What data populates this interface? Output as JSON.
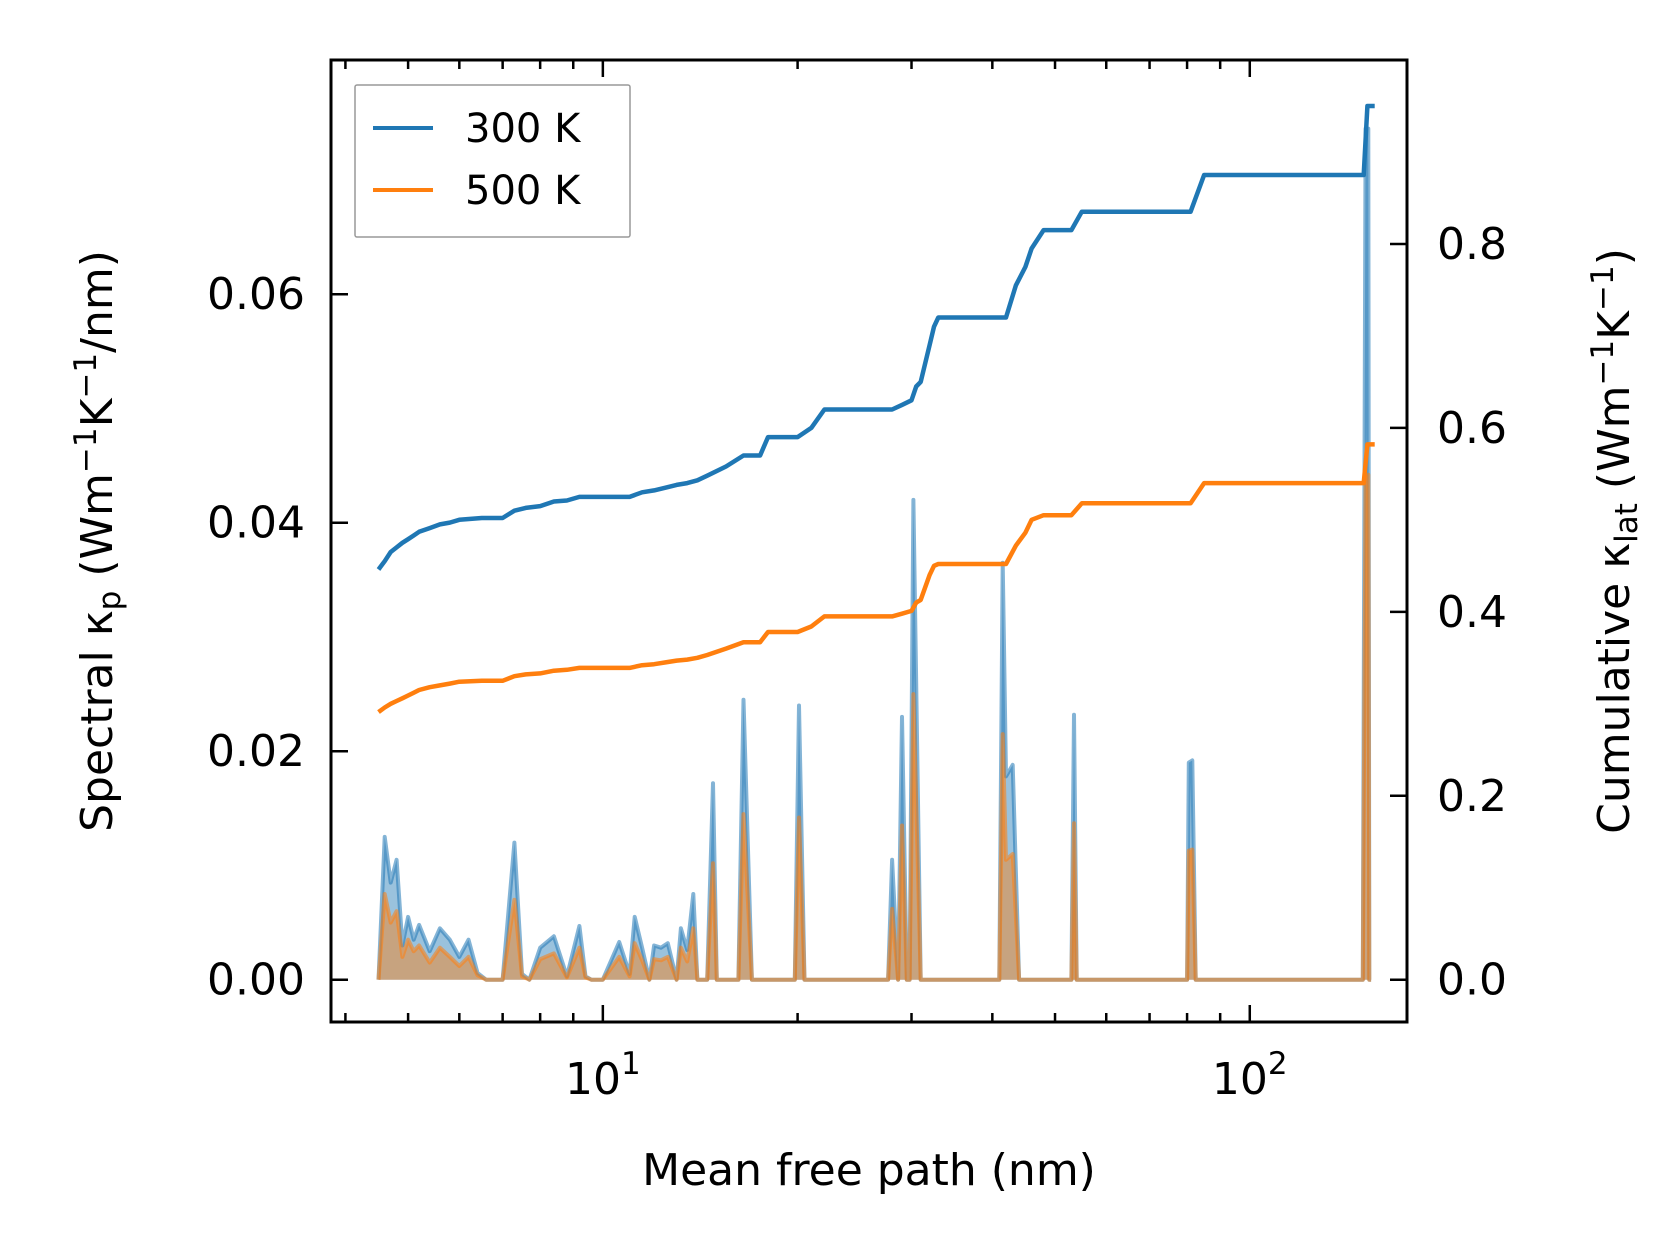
{
  "chart_data": {
    "type": "line",
    "xscale": "log",
    "xlabel": "Mean free path (nm)",
    "ylabel_left": "Spectral κp (Wm−1K−1/nm)",
    "ylabel_right": "Cumulative κlat (Wm−1K−1)",
    "xlim": [
      3.8,
      175
    ],
    "ylim_left": [
      -0.0037,
      0.0805
    ],
    "ylim_right": [
      -0.046,
      1.0
    ],
    "left_ticks": [
      0.0,
      0.02,
      0.04,
      0.06
    ],
    "left_tick_labels": [
      "0.00",
      "0.02",
      "0.04",
      "0.06"
    ],
    "right_ticks": [
      0.0,
      0.2,
      0.4,
      0.6,
      0.8
    ],
    "right_tick_labels": [
      "0.0",
      "0.2",
      "0.4",
      "0.6",
      "0.8"
    ],
    "x_major_ticks": [
      10,
      100
    ],
    "x_tick_labels": [
      {
        "base": "10",
        "exp": "1"
      },
      {
        "base": "10",
        "exp": "2"
      }
    ],
    "legend": {
      "location": "top-left",
      "entries": [
        "300 K",
        "500 K"
      ]
    },
    "series": [
      {
        "name": "300 K",
        "color": "#1f77b4",
        "cumulative": {
          "x": [
            4.5,
            4.6,
            4.7,
            4.8,
            4.9,
            5.0,
            5.1,
            5.2,
            5.4,
            5.6,
            5.8,
            6.0,
            6.5,
            7.0,
            7.3,
            7.6,
            8.0,
            8.4,
            8.8,
            9.2,
            10.0,
            11.0,
            11.5,
            12.0,
            12.5,
            13.0,
            13.5,
            14.0,
            14.5,
            15.5,
            16.5,
            17.5,
            18.0,
            20.0,
            21.0,
            22.0,
            28.0,
            29.0,
            30.0,
            30.5,
            31.0,
            32.0,
            32.5,
            33.0,
            42.0,
            43.5,
            45.0,
            46.0,
            48.0,
            53.0,
            55.0,
            81.0,
            85.0,
            150.0,
            152.0,
            156.0
          ],
          "y": [
            0.446,
            0.455,
            0.465,
            0.47,
            0.475,
            0.479,
            0.483,
            0.487,
            0.491,
            0.495,
            0.497,
            0.5,
            0.502,
            0.502,
            0.51,
            0.513,
            0.515,
            0.52,
            0.521,
            0.525,
            0.525,
            0.525,
            0.53,
            0.532,
            0.535,
            0.538,
            0.54,
            0.543,
            0.548,
            0.558,
            0.57,
            0.57,
            0.59,
            0.59,
            0.6,
            0.62,
            0.62,
            0.625,
            0.63,
            0.645,
            0.65,
            0.69,
            0.71,
            0.72,
            0.72,
            0.755,
            0.775,
            0.795,
            0.815,
            0.815,
            0.835,
            0.835,
            0.875,
            0.875,
            0.95,
            0.95
          ]
        },
        "spectral": {
          "x": [
            4.5,
            4.6,
            4.7,
            4.8,
            4.9,
            5.0,
            5.1,
            5.2,
            5.4,
            5.6,
            5.8,
            6.0,
            6.2,
            6.4,
            6.6,
            6.8,
            7.0,
            7.3,
            7.5,
            7.7,
            8.0,
            8.4,
            8.8,
            9.2,
            9.4,
            9.6,
            10.0,
            10.6,
            11.0,
            11.2,
            11.5,
            11.8,
            12.0,
            12.3,
            12.6,
            13.0,
            13.2,
            13.5,
            13.8,
            14.0,
            14.5,
            14.8,
            15.0,
            15.2,
            16.2,
            16.5,
            17.0,
            17.4,
            19.8,
            20.1,
            20.5,
            20.9,
            27.6,
            28.0,
            28.6,
            29.0,
            29.5,
            29.8,
            30.2,
            31.0,
            31.5,
            32.0,
            41.0,
            41.5,
            42.0,
            43.0,
            44.0,
            45.0,
            46.0,
            53.0,
            53.5,
            54.0,
            54.5,
            80.0,
            80.5,
            81.5,
            82.5,
            83.5,
            149.0,
            149.5,
            151.0,
            152.5,
            153.0,
            154.0
          ],
          "y": [
            0,
            0.0125,
            0.0085,
            0.0105,
            0.003,
            0.0055,
            0.0035,
            0.0048,
            0.0025,
            0.0045,
            0.0035,
            0.002,
            0.0035,
            0.0006,
            0.0,
            0,
            0.0,
            0.012,
            0.0005,
            0.0,
            0.0028,
            0.0038,
            0.0003,
            0.0047,
            0.0003,
            0,
            0.0,
            0.0033,
            0.0005,
            0.0055,
            0.0028,
            0.0,
            0.003,
            0.0028,
            0.0032,
            0.0,
            0.0045,
            0.0026,
            0.0075,
            0.0,
            0.0,
            0.0172,
            0.0,
            0.0,
            0.0,
            0.0245,
            0.0,
            0.0,
            0.0,
            0.024,
            0.0,
            0,
            0.0,
            0.0105,
            0.0,
            0.023,
            0.0,
            0.0,
            0.042,
            0.0,
            0.0,
            0,
            0.0,
            0.0365,
            0.0178,
            0.0188,
            0.0,
            0,
            0.0,
            0.0,
            0.0232,
            0.0,
            0,
            0.0,
            0.019,
            0.0192,
            0.0,
            0,
            0.0,
            0.0,
            0.0745,
            0.0745,
            0.0,
            0
          ]
        }
      },
      {
        "name": "500 K",
        "color": "#ff7f0e",
        "cumulative": {
          "x": [
            4.5,
            4.6,
            4.7,
            4.8,
            4.9,
            5.0,
            5.1,
            5.2,
            5.4,
            5.6,
            5.8,
            6.0,
            6.5,
            7.0,
            7.3,
            7.6,
            8.0,
            8.4,
            8.8,
            9.2,
            10.0,
            11.0,
            11.5,
            12.0,
            12.5,
            13.0,
            13.5,
            14.0,
            14.5,
            15.5,
            16.5,
            17.5,
            18.0,
            20.0,
            21.0,
            22.0,
            28.0,
            29.0,
            30.0,
            30.5,
            31.0,
            32.0,
            32.5,
            33.0,
            42.0,
            43.5,
            45.0,
            46.0,
            48.0,
            53.0,
            55.0,
            81.0,
            85.0,
            150.0,
            152.0,
            156.0
          ],
          "y": [
            0.291,
            0.296,
            0.3,
            0.303,
            0.306,
            0.309,
            0.312,
            0.315,
            0.318,
            0.32,
            0.322,
            0.324,
            0.325,
            0.325,
            0.33,
            0.332,
            0.333,
            0.336,
            0.337,
            0.339,
            0.339,
            0.339,
            0.342,
            0.343,
            0.345,
            0.347,
            0.348,
            0.35,
            0.353,
            0.36,
            0.367,
            0.367,
            0.378,
            0.378,
            0.384,
            0.395,
            0.395,
            0.398,
            0.401,
            0.41,
            0.413,
            0.44,
            0.45,
            0.452,
            0.452,
            0.472,
            0.486,
            0.5,
            0.505,
            0.505,
            0.518,
            0.518,
            0.54,
            0.54,
            0.582,
            0.582
          ]
        },
        "spectral": {
          "x": [
            4.5,
            4.6,
            4.7,
            4.8,
            4.9,
            5.0,
            5.1,
            5.2,
            5.4,
            5.6,
            5.8,
            6.0,
            6.2,
            6.4,
            6.6,
            6.8,
            7.0,
            7.3,
            7.5,
            7.7,
            8.0,
            8.4,
            8.8,
            9.2,
            9.4,
            9.6,
            10.0,
            10.6,
            11.0,
            11.2,
            11.5,
            11.8,
            12.0,
            12.3,
            12.6,
            13.0,
            13.2,
            13.5,
            13.8,
            14.0,
            14.5,
            14.8,
            15.0,
            15.2,
            16.2,
            16.5,
            17.0,
            17.4,
            19.8,
            20.1,
            20.5,
            20.9,
            27.6,
            28.0,
            28.6,
            29.0,
            29.5,
            29.8,
            30.2,
            31.0,
            31.5,
            32.0,
            41.0,
            41.5,
            42.0,
            43.0,
            44.0,
            45.0,
            46.0,
            53.0,
            53.5,
            54.0,
            54.5,
            80.0,
            80.5,
            81.5,
            82.5,
            83.5,
            149.0,
            149.5,
            151.0,
            152.5,
            153.0,
            154.0
          ],
          "y": [
            0,
            0.0075,
            0.005,
            0.006,
            0.002,
            0.0035,
            0.0025,
            0.003,
            0.0015,
            0.0028,
            0.002,
            0.0012,
            0.002,
            0.0004,
            0.0,
            0,
            0.0,
            0.007,
            0.0003,
            0.0,
            0.0018,
            0.0023,
            0.0002,
            0.0028,
            0.0002,
            0,
            0.0,
            0.002,
            0.0003,
            0.0032,
            0.0017,
            0.0,
            0.0018,
            0.0017,
            0.002,
            0.0,
            0.0028,
            0.0016,
            0.0045,
            0.0,
            0.0,
            0.0102,
            0.0,
            0.0,
            0.0,
            0.0145,
            0.0,
            0.0,
            0.0,
            0.0142,
            0.0,
            0,
            0.0,
            0.0062,
            0.0,
            0.0135,
            0.0,
            0.0,
            0.025,
            0.0,
            0.0,
            0,
            0.0,
            0.0215,
            0.0105,
            0.011,
            0.0,
            0,
            0.0,
            0.0,
            0.0137,
            0.0,
            0,
            0.0,
            0.0113,
            0.0114,
            0.0,
            0,
            0.0,
            0.0,
            0.0442,
            0.0442,
            0.0,
            0
          ]
        }
      }
    ]
  }
}
